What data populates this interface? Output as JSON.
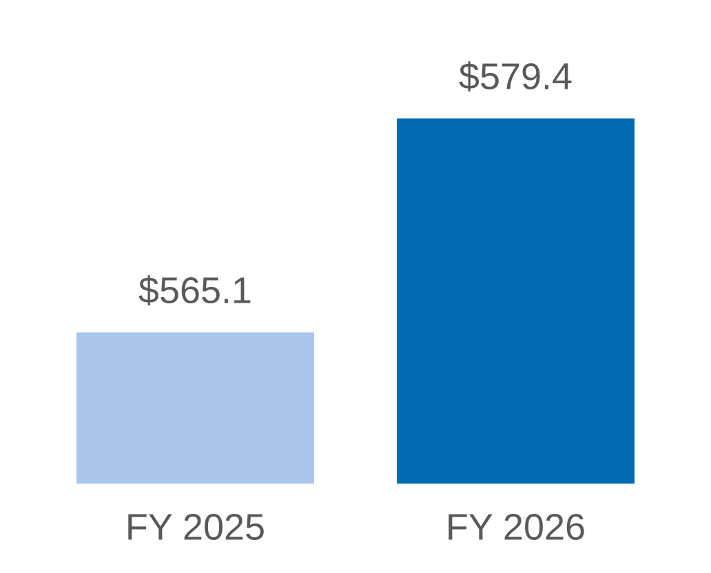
{
  "chart_data": {
    "type": "bar",
    "categories": [
      "FY 2025",
      "FY 2026"
    ],
    "values": [
      565.1,
      579.4
    ],
    "value_labels": [
      "$565.1",
      "$579.4"
    ],
    "colors": [
      "#a9c5eb",
      "#006ab4"
    ],
    "ylim": [
      555,
      585
    ]
  }
}
